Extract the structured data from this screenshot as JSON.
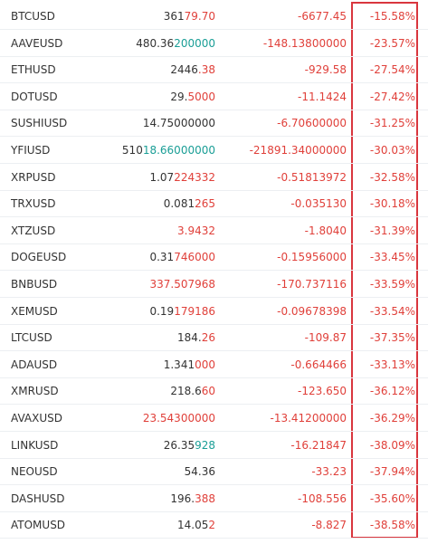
{
  "table": {
    "colors": {
      "change": "#e0403a",
      "highlight": "#d9363e"
    },
    "rows": [
      {
        "symbol": "BTCUSD",
        "price": [
          {
            "text": "361",
            "color": "#333333"
          },
          {
            "text": "79.70",
            "color": "#e0403a"
          }
        ],
        "change": "-6677.45",
        "percent": "-15.58%"
      },
      {
        "symbol": "AAVEUSD",
        "price": [
          {
            "text": "480.36",
            "color": "#333333"
          },
          {
            "text": "200000",
            "color": "#1a9e96"
          }
        ],
        "change": "-148.13800000",
        "percent": "-23.57%"
      },
      {
        "symbol": "ETHUSD",
        "price": [
          {
            "text": "2446",
            "color": "#333333"
          },
          {
            "text": ".38",
            "color": "#e0403a"
          }
        ],
        "change": "-929.58",
        "percent": "-27.54%"
      },
      {
        "symbol": "DOTUSD",
        "price": [
          {
            "text": "29.",
            "color": "#333333"
          },
          {
            "text": "5000",
            "color": "#e0403a"
          }
        ],
        "change": "-11.1424",
        "percent": "-27.42%"
      },
      {
        "symbol": "SUSHIUSD",
        "price": [
          {
            "text": "14.75000000",
            "color": "#333333"
          }
        ],
        "change": "-6.70600000",
        "percent": "-31.25%"
      },
      {
        "symbol": "YFIUSD",
        "price": [
          {
            "text": "510",
            "color": "#333333"
          },
          {
            "text": "18.66000000",
            "color": "#1a9e96"
          }
        ],
        "change": "-21891.34000000",
        "percent": "-30.03%"
      },
      {
        "symbol": "XRPUSD",
        "price": [
          {
            "text": "1.07",
            "color": "#333333"
          },
          {
            "text": "224332",
            "color": "#e0403a"
          }
        ],
        "change": "-0.51813972",
        "percent": "-32.58%"
      },
      {
        "symbol": "TRXUSD",
        "price": [
          {
            "text": "0.081",
            "color": "#333333"
          },
          {
            "text": "265",
            "color": "#e0403a"
          }
        ],
        "change": "-0.035130",
        "percent": "-30.18%"
      },
      {
        "symbol": "XTZUSD",
        "price": [
          {
            "text": "3.9432",
            "color": "#e0403a"
          }
        ],
        "change": "-1.8040",
        "percent": "-31.39%"
      },
      {
        "symbol": "DOGEUSD",
        "price": [
          {
            "text": "0.31",
            "color": "#333333"
          },
          {
            "text": "746000",
            "color": "#e0403a"
          }
        ],
        "change": "-0.15956000",
        "percent": "-33.45%"
      },
      {
        "symbol": "BNBUSD",
        "price": [
          {
            "text": "337.507968",
            "color": "#e0403a"
          }
        ],
        "change": "-170.737116",
        "percent": "-33.59%"
      },
      {
        "symbol": "XEMUSD",
        "price": [
          {
            "text": "0.19",
            "color": "#333333"
          },
          {
            "text": "179186",
            "color": "#e0403a"
          }
        ],
        "change": "-0.09678398",
        "percent": "-33.54%"
      },
      {
        "symbol": "LTCUSD",
        "price": [
          {
            "text": "184.",
            "color": "#333333"
          },
          {
            "text": "26",
            "color": "#e0403a"
          }
        ],
        "change": "-109.87",
        "percent": "-37.35%"
      },
      {
        "symbol": "ADAUSD",
        "price": [
          {
            "text": "1.341",
            "color": "#333333"
          },
          {
            "text": "000",
            "color": "#e0403a"
          }
        ],
        "change": "-0.664466",
        "percent": "-33.13%"
      },
      {
        "symbol": "XMRUSD",
        "price": [
          {
            "text": "218.6",
            "color": "#333333"
          },
          {
            "text": "60",
            "color": "#e0403a"
          }
        ],
        "change": "-123.650",
        "percent": "-36.12%"
      },
      {
        "symbol": "AVAXUSD",
        "price": [
          {
            "text": "23.54300000",
            "color": "#e0403a"
          }
        ],
        "change": "-13.41200000",
        "percent": "-36.29%"
      },
      {
        "symbol": "LINKUSD",
        "price": [
          {
            "text": "26.35",
            "color": "#333333"
          },
          {
            "text": "928",
            "color": "#1a9e96"
          }
        ],
        "change": "-16.21847",
        "percent": "-38.09%"
      },
      {
        "symbol": "NEOUSD",
        "price": [
          {
            "text": "54.36",
            "color": "#333333"
          }
        ],
        "change": "-33.23",
        "percent": "-37.94%"
      },
      {
        "symbol": "DASHUSD",
        "price": [
          {
            "text": "196.",
            "color": "#333333"
          },
          {
            "text": "388",
            "color": "#e0403a"
          }
        ],
        "change": "-108.556",
        "percent": "-35.60%"
      },
      {
        "symbol": "ATOMUSD",
        "price": [
          {
            "text": "14.05",
            "color": "#333333"
          },
          {
            "text": "2",
            "color": "#e0403a"
          }
        ],
        "change": "-8.827",
        "percent": "-38.58%"
      }
    ]
  }
}
